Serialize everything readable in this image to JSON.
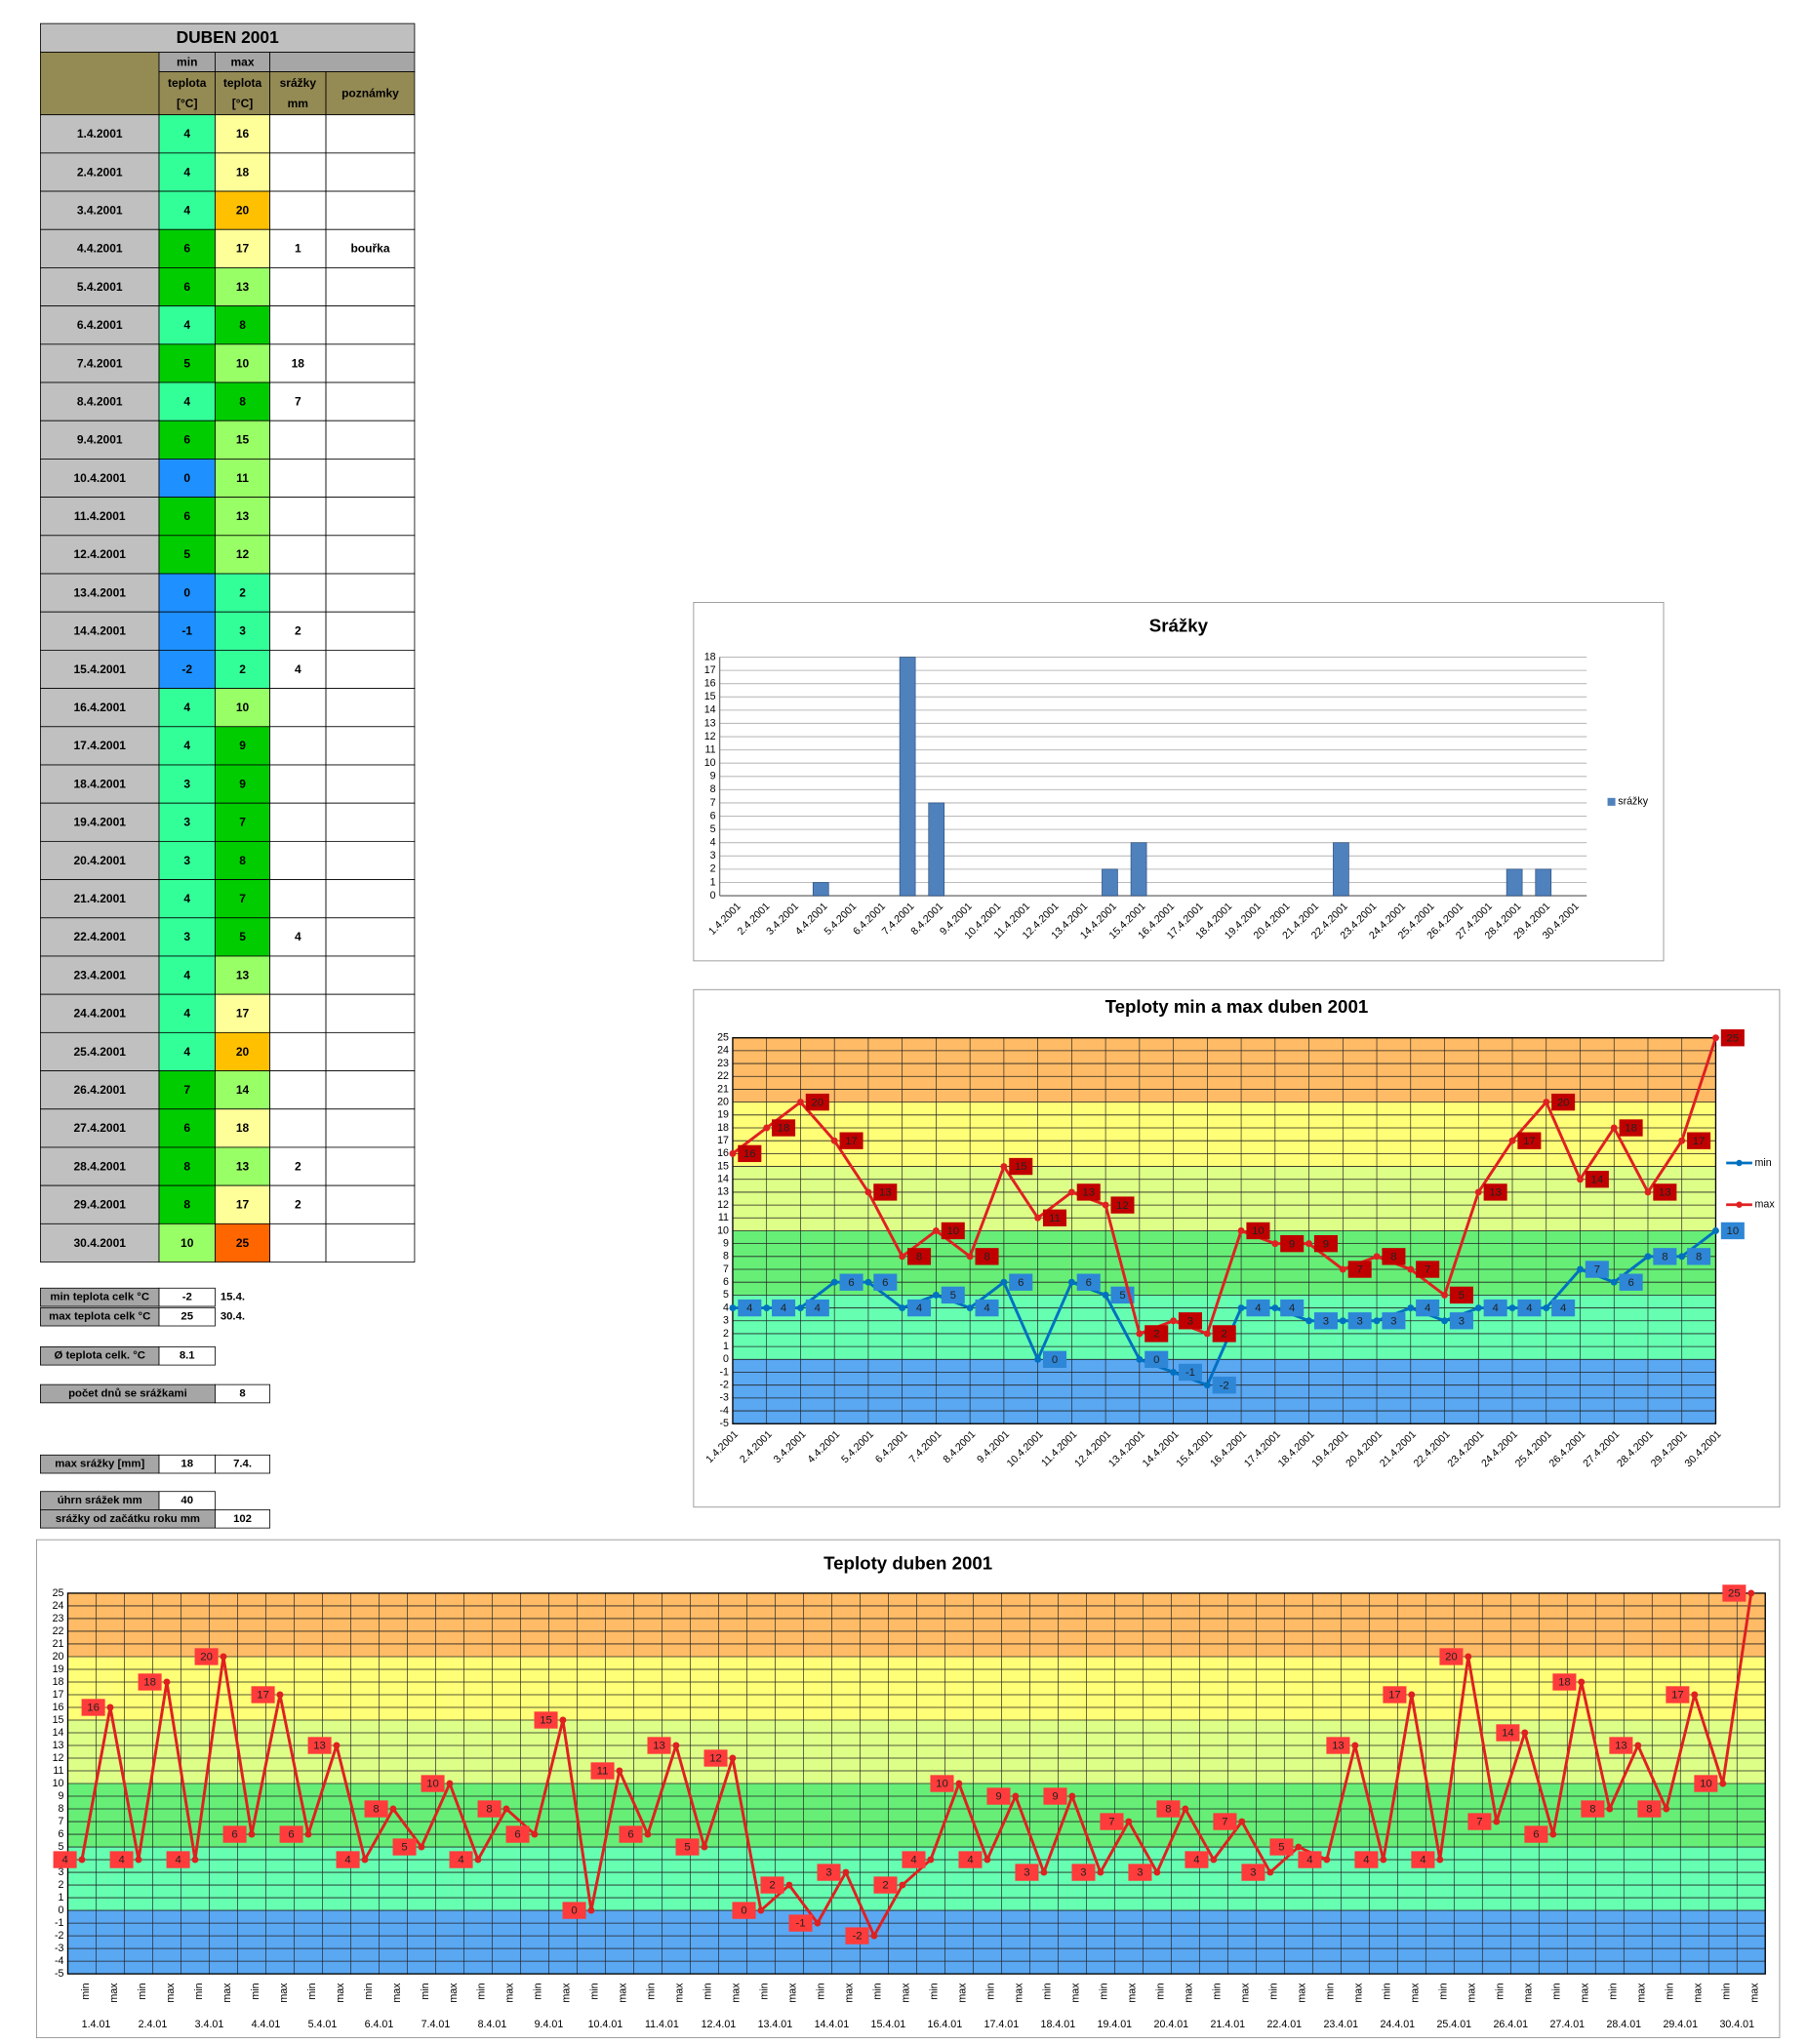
{
  "table": {
    "title": "DUBEN 2001",
    "header": {
      "min": "min",
      "max": "max",
      "teplota_min": "teplota",
      "unit_min": "[°C]",
      "teplota_max": "teplota",
      "unit_max": "[°C]",
      "precip": "srážky",
      "precip_unit": "mm",
      "notes": "poznámky"
    },
    "rows": [
      [
        "1.4.2001",
        4,
        16,
        null,
        null
      ],
      [
        "2.4.2001",
        4,
        18,
        null,
        null
      ],
      [
        "3.4.2001",
        4,
        20,
        null,
        null
      ],
      [
        "4.4.2001",
        6,
        17,
        1,
        "bouřka"
      ],
      [
        "5.4.2001",
        6,
        13,
        null,
        null
      ],
      [
        "6.4.2001",
        4,
        8,
        null,
        null
      ],
      [
        "7.4.2001",
        5,
        10,
        18,
        null
      ],
      [
        "8.4.2001",
        4,
        8,
        7,
        null
      ],
      [
        "9.4.2001",
        6,
        15,
        null,
        null
      ],
      [
        "10.4.2001",
        0,
        11,
        null,
        null
      ],
      [
        "11.4.2001",
        6,
        13,
        null,
        null
      ],
      [
        "12.4.2001",
        5,
        12,
        null,
        null
      ],
      [
        "13.4.2001",
        0,
        2,
        null,
        null
      ],
      [
        "14.4.2001",
        -1,
        3,
        2,
        null
      ],
      [
        "15.4.2001",
        -2,
        2,
        4,
        null
      ],
      [
        "16.4.2001",
        4,
        10,
        null,
        null
      ],
      [
        "17.4.2001",
        4,
        9,
        null,
        null
      ],
      [
        "18.4.2001",
        3,
        9,
        null,
        null
      ],
      [
        "19.4.2001",
        3,
        7,
        null,
        null
      ],
      [
        "20.4.2001",
        3,
        8,
        null,
        null
      ],
      [
        "21.4.2001",
        4,
        7,
        null,
        null
      ],
      [
        "22.4.2001",
        3,
        5,
        4,
        null
      ],
      [
        "23.4.2001",
        4,
        13,
        null,
        null
      ],
      [
        "24.4.2001",
        4,
        17,
        null,
        null
      ],
      [
        "25.4.2001",
        4,
        20,
        null,
        null
      ],
      [
        "26.4.2001",
        7,
        14,
        null,
        null
      ],
      [
        "27.4.2001",
        6,
        18,
        null,
        null
      ],
      [
        "28.4.2001",
        8,
        13,
        2,
        null
      ],
      [
        "29.4.2001",
        8,
        17,
        2,
        null
      ],
      [
        "30.4.2001",
        10,
        25,
        null,
        null
      ]
    ],
    "min_colors": [
      "#33ff99",
      "#33ff99",
      "#33ff99",
      "#00cc00",
      "#00cc00",
      "#33ff99",
      "#00cc00",
      "#33ff99",
      "#00cc00",
      "#1e90ff",
      "#00cc00",
      "#00cc00",
      "#1e90ff",
      "#1e90ff",
      "#1e90ff",
      "#33ff99",
      "#33ff99",
      "#33ff99",
      "#33ff99",
      "#33ff99",
      "#33ff99",
      "#33ff99",
      "#33ff99",
      "#33ff99",
      "#33ff99",
      "#00cc00",
      "#00cc00",
      "#00cc00",
      "#00cc00",
      "#99ff66"
    ],
    "max_colors": [
      "#ffff99",
      "#ffff99",
      "#ffc000",
      "#ffff99",
      "#99ff66",
      "#00cc00",
      "#99ff66",
      "#00cc00",
      "#99ff66",
      "#99ff66",
      "#99ff66",
      "#99ff66",
      "#33ff99",
      "#33ff99",
      "#33ff99",
      "#99ff66",
      "#00cc00",
      "#00cc00",
      "#00cc00",
      "#00cc00",
      "#00cc00",
      "#00cc00",
      "#99ff66",
      "#ffff99",
      "#ffc000",
      "#99ff66",
      "#ffff99",
      "#99ff66",
      "#ffff99",
      "#ff6600"
    ]
  },
  "summary": [
    {
      "label": "min teplota celk °C",
      "value": -2,
      "date": "15.4."
    },
    {
      "label": "max teplota celk °C",
      "value": 25,
      "date": "30.4."
    },
    {
      "label": "Ø teplota celk. °C",
      "value": 8.1
    },
    {
      "label": "počet dnů se srážkami",
      "value": 8
    },
    {
      "label": "max srážky [mm]",
      "value": 18,
      "date": "7.4."
    },
    {
      "label": "úhrn srážek  mm",
      "value": 40
    },
    {
      "label": "srážky od začátku roku mm",
      "value": 102
    }
  ],
  "chart_data": [
    {
      "type": "bar",
      "title": "Srážky",
      "categories": [
        "1.4.2001",
        "2.4.2001",
        "3.4.2001",
        "4.4.2001",
        "5.4.2001",
        "6.4.2001",
        "7.4.2001",
        "8.4.2001",
        "9.4.2001",
        "10.4.2001",
        "11.4.2001",
        "12.4.2001",
        "13.4.2001",
        "14.4.2001",
        "15.4.2001",
        "16.4.2001",
        "17.4.2001",
        "18.4.2001",
        "19.4.2001",
        "20.4.2001",
        "21.4.2001",
        "22.4.2001",
        "23.4.2001",
        "24.4.2001",
        "25.4.2001",
        "26.4.2001",
        "27.4.2001",
        "28.4.2001",
        "29.4.2001",
        "30.4.2001"
      ],
      "series": [
        {
          "name": "srážky",
          "color": "#4f81bd",
          "values": [
            null,
            null,
            null,
            1,
            null,
            null,
            18,
            7,
            null,
            null,
            null,
            null,
            null,
            2,
            4,
            null,
            null,
            null,
            null,
            null,
            null,
            4,
            null,
            null,
            null,
            null,
            null,
            2,
            2,
            null
          ]
        }
      ],
      "ylim": [
        0,
        18
      ],
      "yticks": [
        0,
        1,
        2,
        3,
        4,
        5,
        6,
        7,
        8,
        9,
        10,
        11,
        12,
        13,
        14,
        15,
        16,
        17,
        18
      ],
      "grid": true,
      "legend": "right"
    },
    {
      "type": "line",
      "title": "Teploty min a max duben 2001",
      "categories": [
        "1.4.2001",
        "2.4.2001",
        "3.4.2001",
        "4.4.2001",
        "5.4.2001",
        "6.4.2001",
        "7.4.2001",
        "8.4.2001",
        "9.4.2001",
        "10.4.2001",
        "11.4.2001",
        "12.4.2001",
        "13.4.2001",
        "14.4.2001",
        "15.4.2001",
        "16.4.2001",
        "17.4.2001",
        "18.4.2001",
        "19.4.2001",
        "20.4.2001",
        "21.4.2001",
        "22.4.2001",
        "23.4.2001",
        "24.4.2001",
        "25.4.2001",
        "26.4.2001",
        "27.4.2001",
        "28.4.2001",
        "29.4.2001",
        "30.4.2001"
      ],
      "series": [
        {
          "name": "min",
          "color": "#0070c0",
          "label_color": "#2e86d6",
          "values": [
            4,
            4,
            4,
            6,
            6,
            4,
            5,
            4,
            6,
            0,
            6,
            5,
            0,
            -1,
            -2,
            4,
            4,
            3,
            3,
            3,
            4,
            3,
            4,
            4,
            4,
            7,
            6,
            8,
            8,
            10
          ]
        },
        {
          "name": "max",
          "color": "#e02020",
          "label_color": "#c00000",
          "values": [
            16,
            18,
            20,
            17,
            13,
            8,
            10,
            8,
            15,
            11,
            13,
            12,
            2,
            3,
            2,
            10,
            9,
            9,
            7,
            8,
            7,
            5,
            13,
            17,
            20,
            14,
            18,
            13,
            17,
            25
          ]
        }
      ],
      "ylim": [
        -5,
        25
      ],
      "yticks": [
        -5,
        -4,
        -3,
        -2,
        -1,
        0,
        1,
        2,
        3,
        4,
        5,
        6,
        7,
        8,
        9,
        10,
        11,
        12,
        13,
        14,
        15,
        16,
        17,
        18,
        19,
        20,
        21,
        22,
        23,
        24,
        25
      ],
      "grid": true,
      "legend": "right",
      "bands": [
        {
          "from": -5,
          "to": 0,
          "color": "#5aa7f2"
        },
        {
          "from": 0,
          "to": 5,
          "color": "#66ffb2"
        },
        {
          "from": 5,
          "to": 10,
          "color": "#66ee77"
        },
        {
          "from": 10,
          "to": 15,
          "color": "#ddff88"
        },
        {
          "from": 15,
          "to": 20,
          "color": "#ffff77"
        },
        {
          "from": 20,
          "to": 25,
          "color": "#ffbb66"
        }
      ]
    },
    {
      "type": "line",
      "title": "Teploty duben 2001",
      "categories": [
        "min",
        "max",
        "min",
        "max",
        "min",
        "max",
        "min",
        "max",
        "min",
        "max",
        "min",
        "max",
        "min",
        "max",
        "min",
        "max",
        "min",
        "max",
        "min",
        "max",
        "min",
        "max",
        "min",
        "max",
        "min",
        "max",
        "min",
        "max",
        "min",
        "max",
        "min",
        "max",
        "min",
        "max",
        "min",
        "max",
        "min",
        "max",
        "min",
        "max",
        "min",
        "max",
        "min",
        "max",
        "min",
        "max",
        "min",
        "max",
        "min",
        "max",
        "min",
        "max",
        "min",
        "max",
        "min",
        "max",
        "min",
        "max",
        "min",
        "max"
      ],
      "group_labels": [
        "1.4.01",
        "2.4.01",
        "3.4.01",
        "4.4.01",
        "5.4.01",
        "6.4.01",
        "7.4.01",
        "8.4.01",
        "9.4.01",
        "10.4.01",
        "11.4.01",
        "12.4.01",
        "13.4.01",
        "14.4.01",
        "15.4.01",
        "16.4.01",
        "17.4.01",
        "18.4.01",
        "19.4.01",
        "20.4.01",
        "21.4.01",
        "22.4.01",
        "23.4.01",
        "24.4.01",
        "25.4.01",
        "26.4.01",
        "27.4.01",
        "28.4.01",
        "29.4.01",
        "30.4.01"
      ],
      "series": [
        {
          "color": "#e02020",
          "label_color": "#ff3b3b",
          "values": [
            4,
            16,
            4,
            18,
            4,
            20,
            6,
            17,
            6,
            13,
            4,
            8,
            5,
            10,
            4,
            8,
            6,
            15,
            0,
            11,
            6,
            13,
            5,
            12,
            0,
            2,
            -1,
            3,
            -2,
            2,
            4,
            10,
            4,
            9,
            3,
            9,
            3,
            7,
            3,
            8,
            4,
            7,
            3,
            5,
            4,
            13,
            4,
            17,
            4,
            20,
            7,
            14,
            6,
            18,
            8,
            13,
            8,
            17,
            10,
            25
          ]
        }
      ],
      "ylim": [
        -5,
        25
      ],
      "yticks": [
        -5,
        -4,
        -3,
        -2,
        -1,
        0,
        1,
        2,
        3,
        4,
        5,
        6,
        7,
        8,
        9,
        10,
        11,
        12,
        13,
        14,
        15,
        16,
        17,
        18,
        19,
        20,
        21,
        22,
        23,
        24,
        25
      ],
      "grid": true,
      "bands": [
        {
          "from": -5,
          "to": 0,
          "color": "#5aa7f2"
        },
        {
          "from": 0,
          "to": 5,
          "color": "#66ffb2"
        },
        {
          "from": 5,
          "to": 10,
          "color": "#66ee77"
        },
        {
          "from": 10,
          "to": 15,
          "color": "#ddff88"
        },
        {
          "from": 15,
          "to": 20,
          "color": "#ffff77"
        },
        {
          "from": 20,
          "to": 25,
          "color": "#ffbb66"
        }
      ]
    }
  ]
}
